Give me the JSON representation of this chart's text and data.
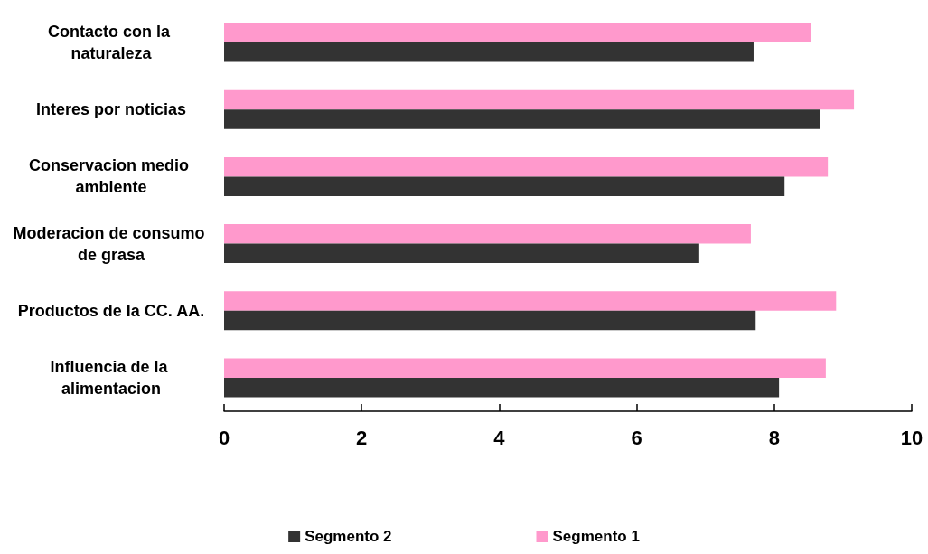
{
  "chart_data": {
    "type": "bar",
    "orientation": "horizontal",
    "categories": [
      "Contacto con la naturaleza",
      "Interes por noticias",
      "Conservacion medio ambiente",
      "Moderacion de consumo de grasa",
      "Productos de la CC. AA.",
      "Influencia de la alimentacion"
    ],
    "series": [
      {
        "name": "Segmento 2",
        "color": "#333333",
        "values": [
          7.7,
          8.66,
          8.15,
          6.91,
          7.73,
          8.07
        ]
      },
      {
        "name": "Segmento 1",
        "color": "#ff99cc",
        "values": [
          8.53,
          9.16,
          8.78,
          7.66,
          8.9,
          8.75
        ]
      }
    ],
    "xlim": [
      0,
      10
    ],
    "xticks": [
      0,
      2,
      4,
      6,
      8,
      10
    ],
    "grid": false,
    "legend": "bottom"
  }
}
